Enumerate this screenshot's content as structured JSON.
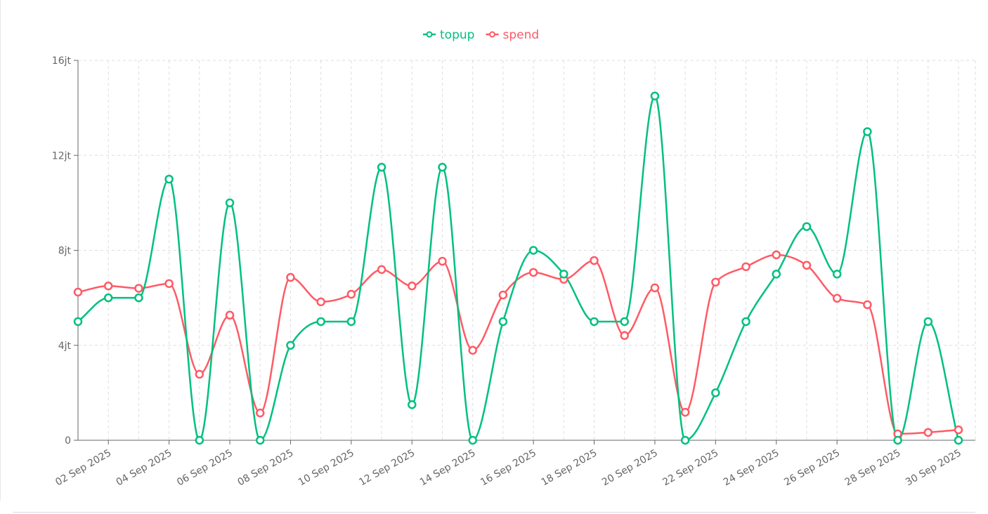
{
  "chart_data": {
    "type": "line",
    "title": "",
    "xlabel": "",
    "ylabel": "",
    "ylim": [
      0,
      16
    ],
    "y_ticks": [
      {
        "value": 0,
        "label": "0"
      },
      {
        "value": 4,
        "label": "4jt"
      },
      {
        "value": 8,
        "label": "8jt"
      },
      {
        "value": 12,
        "label": "12jt"
      },
      {
        "value": 16,
        "label": "16jt"
      }
    ],
    "y_unit": "jt (million)",
    "grid": true,
    "legend_position": "top-center",
    "x": [
      "01 Sep 2025",
      "02 Sep 2025",
      "03 Sep 2025",
      "04 Sep 2025",
      "05 Sep 2025",
      "06 Sep 2025",
      "07 Sep 2025",
      "08 Sep 2025",
      "09 Sep 2025",
      "10 Sep 2025",
      "11 Sep 2025",
      "12 Sep 2025",
      "13 Sep 2025",
      "14 Sep 2025",
      "15 Sep 2025",
      "16 Sep 2025",
      "17 Sep 2025",
      "18 Sep 2025",
      "19 Sep 2025",
      "20 Sep 2025",
      "21 Sep 2025",
      "22 Sep 2025",
      "23 Sep 2025",
      "24 Sep 2025",
      "25 Sep 2025",
      "26 Sep 2025",
      "27 Sep 2025",
      "28 Sep 2025",
      "29 Sep 2025",
      "30 Sep 2025"
    ],
    "x_tick_labels": [
      "02 Sep 2025",
      "04 Sep 2025",
      "06 Sep 2025",
      "08 Sep 2025",
      "10 Sep 2025",
      "12 Sep 2025",
      "14 Sep 2025",
      "16 Sep 2025",
      "18 Sep 2025",
      "20 Sep 2025",
      "22 Sep 2025",
      "24 Sep 2025",
      "26 Sep 2025",
      "28 Sep 2025",
      "30 Sep 2025"
    ],
    "series": [
      {
        "name": "topup",
        "color": "#00c07f",
        "values": [
          5,
          6,
          6,
          11,
          0,
          10,
          0,
          4,
          5,
          5,
          11.5,
          1.5,
          11.5,
          0,
          5,
          8,
          7,
          5,
          5,
          14.5,
          0,
          2,
          5,
          7,
          9,
          7,
          13,
          0,
          5,
          0
        ]
      },
      {
        "name": "spend",
        "color": "#ff5a65",
        "values": [
          6.24,
          6.5,
          6.4,
          6.6,
          2.78,
          5.27,
          1.15,
          6.86,
          5.83,
          6.15,
          7.19,
          6.5,
          7.54,
          3.79,
          6.12,
          7.07,
          6.78,
          7.57,
          4.41,
          6.42,
          1.18,
          6.66,
          7.31,
          7.81,
          7.37,
          5.98,
          5.71,
          0.27,
          0.33,
          0.44
        ]
      }
    ]
  }
}
